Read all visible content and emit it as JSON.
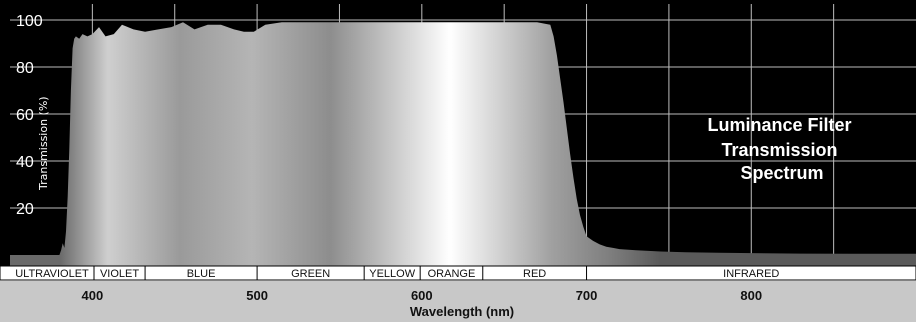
{
  "chart_data": {
    "type": "area",
    "title_lines": [
      "Luminance Filter",
      "Transmission",
      "Spectrum"
    ],
    "xlabel": "Wavelength (nm)",
    "ylabel": "Transmission (%)",
    "xlim": [
      350,
      900
    ],
    "ylim": [
      0,
      100
    ],
    "xticks": [
      400,
      500,
      600,
      700,
      800
    ],
    "yticks": [
      20,
      40,
      60,
      80,
      100
    ],
    "grid": true,
    "colors": {
      "background": "#000000",
      "grid": "#bdbdbd",
      "fill_light": "#ffffff",
      "fill_mid": "#bdbdbd",
      "fill_dark": "#5a5a5a",
      "band_row": "#ffffff",
      "axis_row": "#c8c8c8"
    },
    "bands": [
      {
        "label": "ULTRAVIOLET",
        "start": 350,
        "end": 401
      },
      {
        "label": "VIOLET",
        "start": 401,
        "end": 432
      },
      {
        "label": "BLUE",
        "start": 432,
        "end": 500
      },
      {
        "label": "GREEN",
        "start": 500,
        "end": 565
      },
      {
        "label": "YELLOW",
        "start": 565,
        "end": 599
      },
      {
        "label": "ORANGE",
        "start": 599,
        "end": 637
      },
      {
        "label": "RED",
        "start": 637,
        "end": 700
      },
      {
        "label": "INFRARED",
        "start": 700,
        "end": 900
      }
    ],
    "series": [
      {
        "x": [
          350,
          380,
          381,
          382,
          383,
          384,
          385,
          386,
          387,
          388,
          389,
          390,
          392,
          394,
          397,
          400,
          404,
          408,
          413,
          418,
          425,
          432,
          440,
          448,
          455,
          462,
          470,
          478,
          486,
          492,
          498,
          505,
          515,
          530,
          545,
          560,
          575,
          590,
          605,
          620,
          635,
          650,
          660,
          670,
          678,
          680,
          682,
          684,
          686,
          688,
          690,
          692,
          694,
          696,
          698,
          700,
          704,
          708,
          712,
          716,
          720,
          730,
          745,
          760,
          780,
          800,
          830,
          860,
          900
        ],
        "y": [
          0,
          0,
          2,
          5,
          3,
          10,
          25,
          45,
          70,
          88,
          92,
          93,
          92,
          94,
          93,
          94,
          97,
          93,
          94,
          98,
          96,
          95,
          96,
          97,
          99,
          96,
          98,
          98,
          96,
          95,
          95,
          98,
          99,
          99,
          99,
          99,
          99,
          99,
          99,
          99,
          99,
          99,
          99,
          99,
          98,
          93,
          85,
          75,
          65,
          54,
          43,
          33,
          24,
          17,
          12,
          8,
          6,
          4.5,
          3.5,
          3,
          2.5,
          2,
          1.5,
          1.2,
          1,
          0.8,
          0.6,
          0.5,
          0.5
        ]
      }
    ]
  }
}
